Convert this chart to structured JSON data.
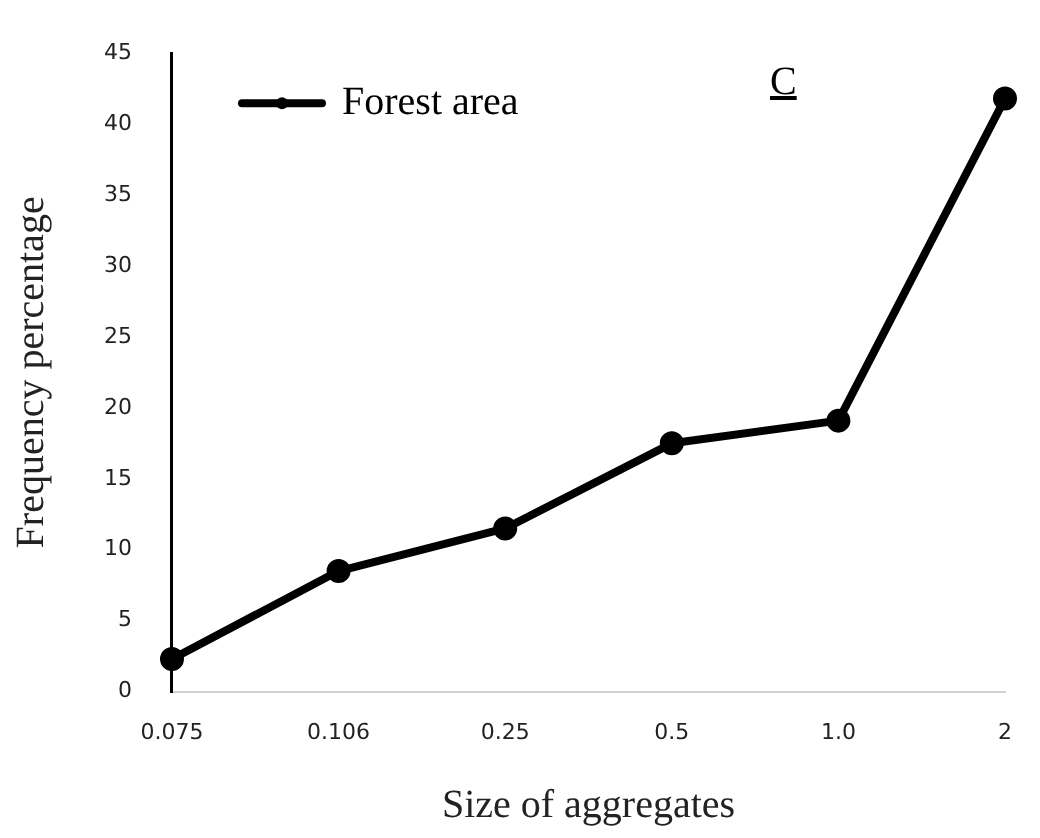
{
  "chart_data": {
    "type": "line",
    "xlabel": "Size of aggregates",
    "ylabel": "Frequency percentage",
    "categories": [
      "0.075",
      "0.106",
      "0.25",
      "0.5",
      "1.0",
      "2"
    ],
    "series": [
      {
        "name": "Forest area",
        "color": "#000000",
        "values": [
          2.3,
          8.5,
          11.5,
          17.5,
          19.1,
          41.8
        ]
      }
    ],
    "ylim": [
      0,
      45
    ],
    "yticks": [
      0,
      5,
      10,
      15,
      20,
      25,
      30,
      35,
      40,
      45
    ],
    "grid": false,
    "legend": "top left",
    "marker": "circle",
    "line_style": "solid",
    "annotations": [
      "C"
    ]
  }
}
